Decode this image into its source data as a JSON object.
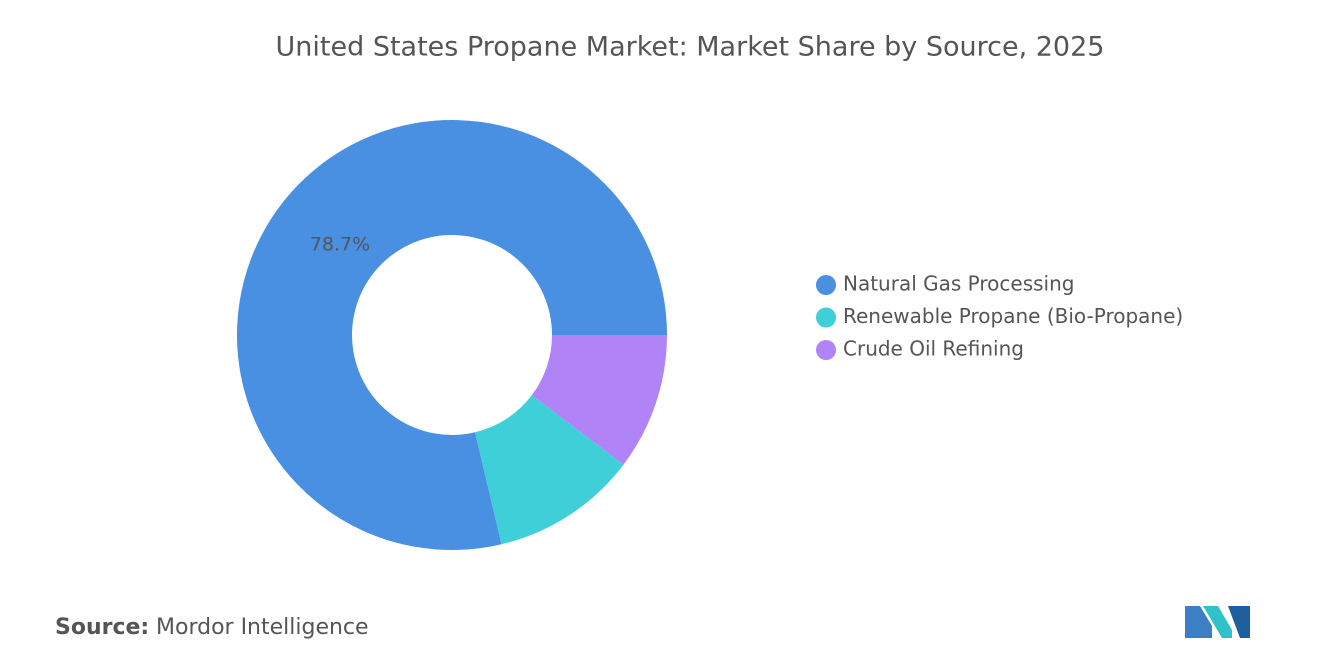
{
  "chart_data": {
    "type": "donut",
    "title": "United States Propane Market: Market Share by Source, 2025",
    "categories": [
      "Natural Gas Processing",
      "Renewable Propane (Bio-Propane)",
      "Crude Oil Refining"
    ],
    "values": [
      78.7,
      11.0,
      10.3
    ],
    "value_labels": [
      "78.7%",
      null,
      null
    ],
    "colors": [
      "#4a90e2",
      "#3ecfd8",
      "#b084f7"
    ],
    "legend": "right"
  },
  "source": {
    "label": "Source:",
    "text": "Mordor Intelligence"
  }
}
